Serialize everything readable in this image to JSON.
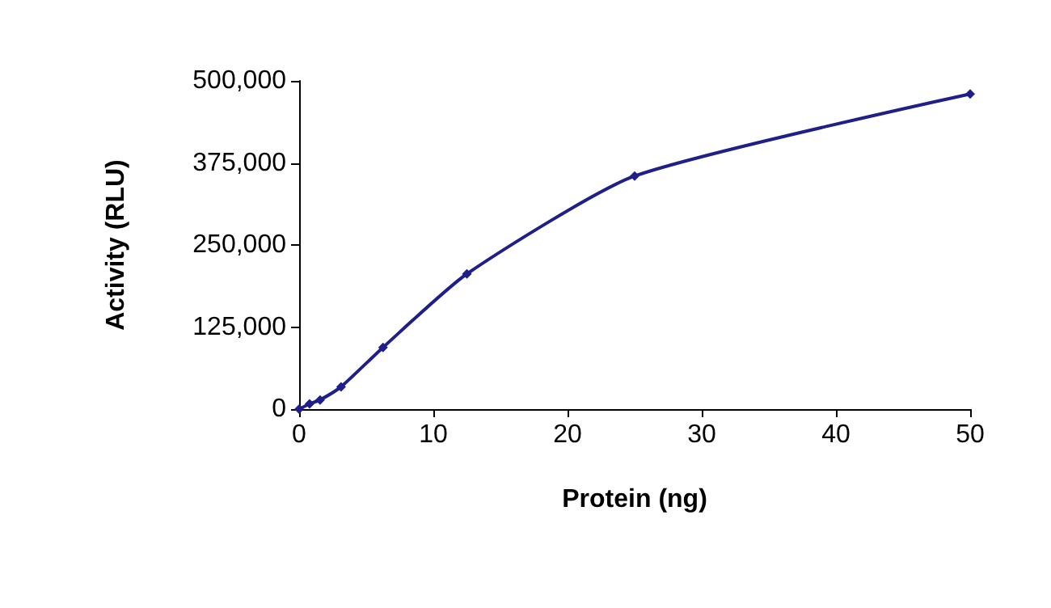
{
  "chart_data": {
    "type": "line",
    "xlabel": "Protein (ng)",
    "ylabel": "Activity (RLU)",
    "series": [
      {
        "color": "#1f1f8a",
        "x": [
          0,
          0.78,
          1.56,
          3.125,
          6.25,
          12.5,
          25,
          50
        ],
        "values": [
          0,
          8000,
          14000,
          34000,
          94000,
          206000,
          355000,
          480000
        ]
      }
    ],
    "xlim": [
      0,
      50
    ],
    "xticks": [
      0,
      10,
      20,
      30,
      40,
      50
    ],
    "ylim": [
      0,
      500000
    ],
    "yticks": [
      0,
      {
        "value": 125000,
        "label": "125,000"
      },
      {
        "value": 250000,
        "label": "250,000"
      },
      {
        "value": 375000,
        "label": "375,000"
      },
      {
        "value": 500000,
        "label": "500,000"
      }
    ],
    "grid": false,
    "marker": "diamond",
    "line_style": "solid"
  }
}
